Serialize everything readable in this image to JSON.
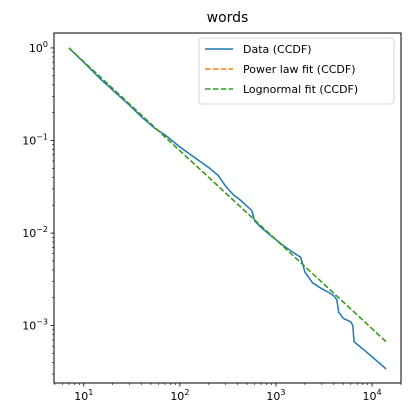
{
  "chart_data": {
    "type": "line",
    "title": "words",
    "xlabel": "",
    "ylabel": "",
    "xscale": "log",
    "yscale": "log",
    "xlim": [
      4.9,
      20000
    ],
    "ylim": [
      0.00024,
      1.45
    ],
    "xticks": [
      {
        "value": 10,
        "base": "10",
        "exp": "1"
      },
      {
        "value": 100,
        "base": "10",
        "exp": "2"
      },
      {
        "value": 1000,
        "base": "10",
        "exp": "3"
      },
      {
        "value": 10000,
        "base": "10",
        "exp": "4"
      }
    ],
    "yticks": [
      {
        "value": 0.001,
        "base": "10",
        "exp": "−3"
      },
      {
        "value": 0.01,
        "base": "10",
        "exp": "−2"
      },
      {
        "value": 0.1,
        "base": "10",
        "exp": "−1"
      },
      {
        "value": 1,
        "base": "10",
        "exp": "0"
      }
    ],
    "grid": false,
    "legend_position": "top-right",
    "series": [
      {
        "name": "Data (CCDF)",
        "color": "#1f77b4",
        "style": "solid",
        "x": [
          7,
          10,
          15,
          20,
          30,
          40,
          55,
          70,
          100,
          150,
          200,
          250,
          300,
          360,
          420,
          500,
          560,
          600,
          700,
          900,
          1200,
          1500,
          1800,
          1900,
          2000,
          2400,
          3000,
          3500,
          4000,
          4300,
          4500,
          5000,
          6000,
          6300,
          6500,
          8000,
          10000,
          14000
        ],
        "y": [
          1.0,
          0.7,
          0.46,
          0.35,
          0.24,
          0.18,
          0.135,
          0.115,
          0.085,
          0.063,
          0.051,
          0.042,
          0.032,
          0.026,
          0.023,
          0.0195,
          0.0175,
          0.0135,
          0.0115,
          0.0092,
          0.0073,
          0.0062,
          0.0055,
          0.0046,
          0.0038,
          0.0029,
          0.0025,
          0.0023,
          0.0021,
          0.0019,
          0.0014,
          0.0012,
          0.0011,
          0.001,
          0.00067,
          0.00056,
          0.00046,
          0.00034
        ]
      },
      {
        "name": "Power law fit (CCDF)",
        "color": "#ff7f0e",
        "style": "dashed",
        "x": [
          7,
          14000
        ],
        "y": [
          1.0,
          0.00067
        ]
      },
      {
        "name": "Lognormal fit (CCDF)",
        "color": "#2ca02c",
        "style": "dashed",
        "x": [
          7,
          14000
        ],
        "y": [
          1.0,
          0.00067
        ]
      }
    ]
  }
}
